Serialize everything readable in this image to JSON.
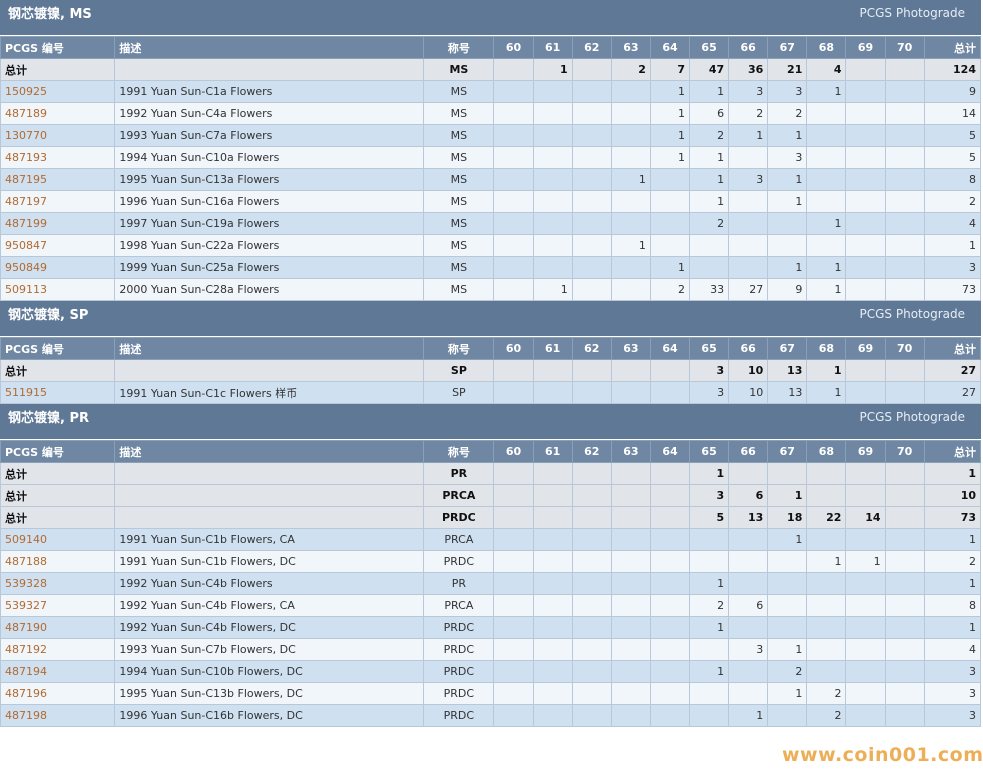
{
  "headers": {
    "pcgs": "PCGS 编号",
    "desc": "描述",
    "designation": "称号",
    "grades": [
      "60",
      "61",
      "62",
      "63",
      "64",
      "65",
      "66",
      "67",
      "68",
      "69",
      "70"
    ],
    "total": "总计"
  },
  "sections": [
    {
      "title": "钢芯镀镍, MS",
      "link": "PCGS Photograde",
      "totals": [
        {
          "label": "总计",
          "designation": "MS",
          "values": [
            "",
            "1",
            "",
            "2",
            "7",
            "47",
            "36",
            "21",
            "4",
            "",
            ""
          ],
          "total": "124"
        }
      ],
      "rows": [
        {
          "code": "150925",
          "desc": "1991 Yuan Sun-C1a Flowers",
          "designation": "MS",
          "values": [
            "",
            "",
            "",
            "",
            "1",
            "1",
            "3",
            "3",
            "1",
            "",
            ""
          ],
          "total": "9"
        },
        {
          "code": "487189",
          "desc": "1992 Yuan Sun-C4a Flowers",
          "designation": "MS",
          "values": [
            "",
            "",
            "",
            "",
            "1",
            "6",
            "2",
            "2",
            "",
            "",
            ""
          ],
          "total": "14"
        },
        {
          "code": "130770",
          "desc": "1993 Yuan Sun-C7a Flowers",
          "designation": "MS",
          "values": [
            "",
            "",
            "",
            "",
            "1",
            "2",
            "1",
            "1",
            "",
            "",
            ""
          ],
          "total": "5"
        },
        {
          "code": "487193",
          "desc": "1994 Yuan Sun-C10a Flowers",
          "designation": "MS",
          "values": [
            "",
            "",
            "",
            "",
            "1",
            "1",
            "",
            "3",
            "",
            "",
            ""
          ],
          "total": "5"
        },
        {
          "code": "487195",
          "desc": "1995 Yuan Sun-C13a Flowers",
          "designation": "MS",
          "values": [
            "",
            "",
            "",
            "1",
            "",
            "1",
            "3",
            "1",
            "",
            "",
            ""
          ],
          "total": "8"
        },
        {
          "code": "487197",
          "desc": "1996 Yuan Sun-C16a Flowers",
          "designation": "MS",
          "values": [
            "",
            "",
            "",
            "",
            "",
            "1",
            "",
            "1",
            "",
            "",
            ""
          ],
          "total": "2"
        },
        {
          "code": "487199",
          "desc": "1997 Yuan Sun-C19a Flowers",
          "designation": "MS",
          "values": [
            "",
            "",
            "",
            "",
            "",
            "2",
            "",
            "",
            "1",
            "",
            ""
          ],
          "total": "4"
        },
        {
          "code": "950847",
          "desc": "1998 Yuan Sun-C22a Flowers",
          "designation": "MS",
          "values": [
            "",
            "",
            "",
            "1",
            "",
            "",
            "",
            "",
            "",
            "",
            ""
          ],
          "total": "1"
        },
        {
          "code": "950849",
          "desc": "1999 Yuan Sun-C25a Flowers",
          "designation": "MS",
          "values": [
            "",
            "",
            "",
            "",
            "1",
            "",
            "",
            "1",
            "1",
            "",
            ""
          ],
          "total": "3"
        },
        {
          "code": "509113",
          "desc": "2000 Yuan Sun-C28a Flowers",
          "designation": "MS",
          "values": [
            "",
            "1",
            "",
            "",
            "2",
            "33",
            "27",
            "9",
            "1",
            "",
            ""
          ],
          "total": "73"
        }
      ]
    },
    {
      "title": "钢芯镀镍, SP",
      "link": "PCGS Photograde",
      "totals": [
        {
          "label": "总计",
          "designation": "SP",
          "values": [
            "",
            "",
            "",
            "",
            "",
            "3",
            "10",
            "13",
            "1",
            "",
            ""
          ],
          "total": "27"
        }
      ],
      "rows": [
        {
          "code": "511915",
          "desc": "1991 Yuan Sun-C1c Flowers 样币",
          "designation": "SP",
          "values": [
            "",
            "",
            "",
            "",
            "",
            "3",
            "10",
            "13",
            "1",
            "",
            ""
          ],
          "total": "27"
        }
      ]
    },
    {
      "title": "钢芯镀镍, PR",
      "link": "PCGS Photograde",
      "totals": [
        {
          "label": "总计",
          "designation": "PR",
          "values": [
            "",
            "",
            "",
            "",
            "",
            "1",
            "",
            "",
            "",
            "",
            ""
          ],
          "total": "1"
        },
        {
          "label": "总计",
          "designation": "PRCA",
          "values": [
            "",
            "",
            "",
            "",
            "",
            "3",
            "6",
            "1",
            "",
            "",
            ""
          ],
          "total": "10"
        },
        {
          "label": "总计",
          "designation": "PRDC",
          "values": [
            "",
            "",
            "",
            "",
            "",
            "5",
            "13",
            "18",
            "22",
            "14",
            ""
          ],
          "total": "73"
        }
      ],
      "rows": [
        {
          "code": "509140",
          "desc": "1991 Yuan Sun-C1b Flowers, CA",
          "designation": "PRCA",
          "values": [
            "",
            "",
            "",
            "",
            "",
            "",
            "",
            "1",
            "",
            "",
            ""
          ],
          "total": "1"
        },
        {
          "code": "487188",
          "desc": "1991 Yuan Sun-C1b Flowers, DC",
          "designation": "PRDC",
          "values": [
            "",
            "",
            "",
            "",
            "",
            "",
            "",
            "",
            "1",
            "1",
            ""
          ],
          "total": "2"
        },
        {
          "code": "539328",
          "desc": "1992 Yuan Sun-C4b Flowers",
          "designation": "PR",
          "values": [
            "",
            "",
            "",
            "",
            "",
            "1",
            "",
            "",
            "",
            "",
            ""
          ],
          "total": "1"
        },
        {
          "code": "539327",
          "desc": "1992 Yuan Sun-C4b Flowers, CA",
          "designation": "PRCA",
          "values": [
            "",
            "",
            "",
            "",
            "",
            "2",
            "6",
            "",
            "",
            "",
            ""
          ],
          "total": "8"
        },
        {
          "code": "487190",
          "desc": "1992 Yuan Sun-C4b Flowers, DC",
          "designation": "PRDC",
          "values": [
            "",
            "",
            "",
            "",
            "",
            "1",
            "",
            "",
            "",
            "",
            ""
          ],
          "total": "1"
        },
        {
          "code": "487192",
          "desc": "1993 Yuan Sun-C7b Flowers, DC",
          "designation": "PRDC",
          "values": [
            "",
            "",
            "",
            "",
            "",
            "",
            "3",
            "1",
            "",
            "",
            ""
          ],
          "total": "4"
        },
        {
          "code": "487194",
          "desc": "1994 Yuan Sun-C10b Flowers, DC",
          "designation": "PRDC",
          "values": [
            "",
            "",
            "",
            "",
            "",
            "1",
            "",
            "2",
            "",
            "",
            ""
          ],
          "total": "3"
        },
        {
          "code": "487196",
          "desc": "1995 Yuan Sun-C13b Flowers, DC",
          "designation": "PRDC",
          "values": [
            "",
            "",
            "",
            "",
            "",
            "",
            "",
            "1",
            "2",
            "",
            ""
          ],
          "total": "3"
        },
        {
          "code": "487198",
          "desc": "1996 Yuan Sun-C16b Flowers, DC",
          "designation": "PRDC",
          "values": [
            "",
            "",
            "",
            "",
            "",
            "",
            "1",
            "",
            "2",
            "",
            ""
          ],
          "total": "3"
        }
      ]
    }
  ],
  "watermark": "www.coin001.com",
  "colors": {
    "header_bg": "#5f7896",
    "col_header_bg": "#6f87a3",
    "row_blue": "#cfe0f1",
    "row_light": "#f1f6fb",
    "total_row": "#e1e4e8",
    "link": "#b36a2e",
    "watermark": "#e9a23a"
  }
}
